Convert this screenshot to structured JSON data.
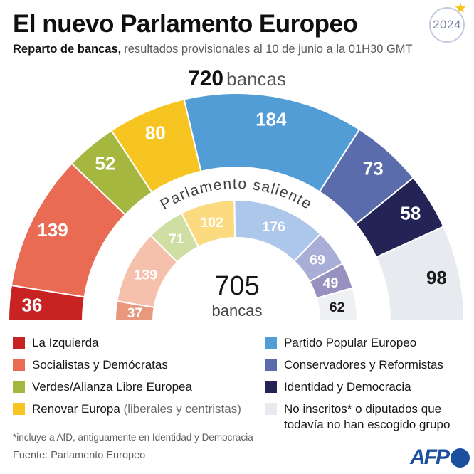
{
  "header": {
    "title": "El nuevo Parlamento Europeo",
    "subtitle_bold": "Reparto de bancas,",
    "subtitle_rest": "resultados provisionales al 10 de junio a la 01H30 GMT",
    "badge_year": "2024"
  },
  "chart_data": {
    "type": "pie",
    "shape": "hemicycle-double-ring",
    "legend_position": "bottom",
    "title": "El nuevo Parlamento Europeo",
    "ring_label": "Parlamento saliente",
    "rings": [
      {
        "name": "Nuevo Parlamento",
        "total": 720,
        "total_label": "720",
        "total_unit": "bancas",
        "segments": [
          {
            "party": "La Izquierda",
            "seats": 36,
            "color": "#c82322",
            "label_color": "#ffffff"
          },
          {
            "party": "Socialistas y Demócratas",
            "seats": 139,
            "color": "#ea6b53",
            "label_color": "#ffffff"
          },
          {
            "party": "Verdes/Alianza Libre Europea",
            "seats": 52,
            "color": "#a5b73e",
            "label_color": "#ffffff"
          },
          {
            "party": "Renovar Europa",
            "seats": 80,
            "color": "#f7c522",
            "label_color": "#ffffff"
          },
          {
            "party": "Partido Popular Europeo",
            "seats": 184,
            "color": "#539dd6",
            "label_color": "#ffffff"
          },
          {
            "party": "Conservadores y Reformistas",
            "seats": 73,
            "color": "#5a6cab",
            "label_color": "#ffffff"
          },
          {
            "party": "Identidad y Democracia",
            "seats": 58,
            "color": "#232455",
            "label_color": "#ffffff"
          },
          {
            "party": "No inscritos o diputados que todavía no han escogido grupo",
            "seats": 98,
            "color": "#e7eaee",
            "label_color": "#1a1a1a"
          }
        ]
      },
      {
        "name": "Parlamento saliente",
        "total": 705,
        "total_label": "705",
        "total_unit": "bancas",
        "segments": [
          {
            "party": "La Izquierda",
            "seats": 37,
            "color": "#e8997d",
            "label_color": "#ffffff"
          },
          {
            "party": "Socialistas y Demócratas",
            "seats": 139,
            "color": "#f6c1ac",
            "label_color": "#ffffff"
          },
          {
            "party": "Verdes/Alianza Libre Europea",
            "seats": 71,
            "color": "#cfdfa3",
            "label_color": "#ffffff"
          },
          {
            "party": "Renovar Europa",
            "seats": 102,
            "color": "#fbda80",
            "label_color": "#ffffff"
          },
          {
            "party": "Partido Popular Europeo",
            "seats": 176,
            "color": "#adc7eb",
            "label_color": "#ffffff"
          },
          {
            "party": "Conservadores y Reformistas",
            "seats": 69,
            "color": "#a9aed6",
            "label_color": "#ffffff"
          },
          {
            "party": "Identidad y Democracia",
            "seats": 49,
            "color": "#9791c0",
            "label_color": "#ffffff"
          },
          {
            "party": "No inscritos o diputados que todavía no han escogido grupo",
            "seats": 62,
            "color": "#eef0f4",
            "label_color": "#1a1a1a"
          }
        ]
      }
    ]
  },
  "legend": {
    "left": [
      {
        "label": "La Izquierda",
        "color": "#c82322"
      },
      {
        "label": "Socialistas y Demócratas",
        "color": "#ea6b53"
      },
      {
        "label": "Verdes/Alianza Libre Europea",
        "color": "#a5b73e"
      },
      {
        "label": "Renovar Europa",
        "suffix": " (liberales y centristas)",
        "color": "#f7c522"
      }
    ],
    "right": [
      {
        "label": "Partido Popular Europeo",
        "color": "#539dd6"
      },
      {
        "label": "Conservadores y Reformistas",
        "color": "#5a6cab"
      },
      {
        "label": "Identidad y Democracia",
        "color": "#232455"
      },
      {
        "label": "No inscritos* o diputados que todavía no han escogido grupo",
        "color": "#e7eaee"
      }
    ]
  },
  "footer": {
    "footnote": "*incluye a AfD, antiguamente en Identidad y Democracia",
    "source": "Fuente: Parlamento Europeo",
    "logo_text": "AFP"
  }
}
